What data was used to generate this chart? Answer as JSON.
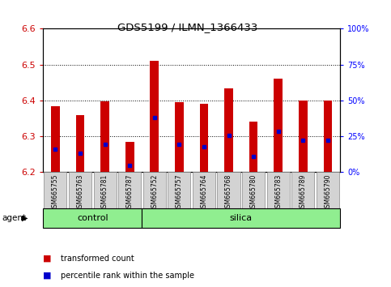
{
  "title": "GDS5199 / ILMN_1366433",
  "samples": [
    "GSM665755",
    "GSM665763",
    "GSM665781",
    "GSM665787",
    "GSM665752",
    "GSM665757",
    "GSM665764",
    "GSM665768",
    "GSM665780",
    "GSM665783",
    "GSM665789",
    "GSM665790"
  ],
  "bar_tops": [
    6.385,
    6.358,
    6.398,
    6.285,
    6.51,
    6.395,
    6.39,
    6.433,
    6.342,
    6.46,
    6.4,
    6.4
  ],
  "blue_dots": [
    6.264,
    6.252,
    6.277,
    6.218,
    6.353,
    6.277,
    6.272,
    6.302,
    6.243,
    6.314,
    6.288,
    6.29
  ],
  "ymin": 6.2,
  "ymax": 6.6,
  "bar_color": "#cc0000",
  "dot_color": "#0000cc",
  "bar_width": 0.35,
  "control_count": 4,
  "silica_count": 8,
  "agent_color": "#90ee90",
  "xlabel_color": "#cc0000",
  "right_ylabel_color": "#0000ff",
  "bg_color": "#ffffff",
  "tick_label_bg": "#d3d3d3",
  "legend_items": [
    {
      "label": "transformed count",
      "color": "#cc0000"
    },
    {
      "label": "percentile rank within the sample",
      "color": "#0000cc"
    }
  ],
  "yticks": [
    6.2,
    6.3,
    6.4,
    6.5,
    6.6
  ],
  "right_ticks_pct": [
    0,
    25,
    50,
    75,
    100
  ],
  "right_tick_labels": [
    "0%",
    "25%",
    "50%",
    "75%",
    "100%"
  ]
}
